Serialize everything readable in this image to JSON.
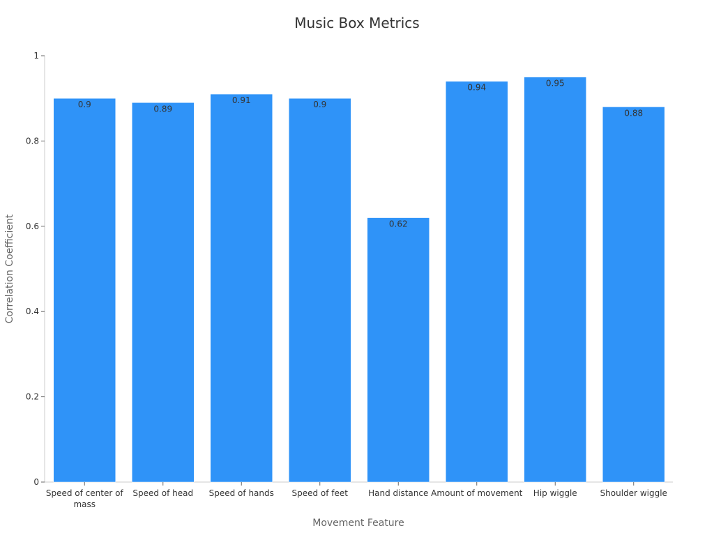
{
  "chart_data": {
    "type": "bar",
    "title": "Music Box Metrics",
    "xlabel": "Movement Feature",
    "ylabel": "Correlation Coefficient",
    "ylim": [
      0,
      1
    ],
    "yticks": [
      0,
      0.2,
      0.4,
      0.6,
      0.8,
      1
    ],
    "ytick_labels": [
      "0",
      "0.2",
      "0.4",
      "0.6",
      "0.8",
      "1"
    ],
    "categories": [
      "Speed of center of mass",
      "Speed of head",
      "Speed of hands",
      "Speed of feet",
      "Hand distance",
      "Amount of movement",
      "Hip wiggle",
      "Shoulder wiggle"
    ],
    "category_label_lines": [
      [
        "Speed of center of",
        "mass"
      ],
      [
        "Speed of head"
      ],
      [
        "Speed of hands"
      ],
      [
        "Speed of feet"
      ],
      [
        "Hand distance"
      ],
      [
        "Amount of movement"
      ],
      [
        "Hip wiggle"
      ],
      [
        "Shoulder wiggle"
      ]
    ],
    "values": [
      0.9,
      0.89,
      0.91,
      0.9,
      0.62,
      0.94,
      0.95,
      0.88
    ],
    "value_labels": [
      "0.9",
      "0.89",
      "0.91",
      "0.9",
      "0.62",
      "0.94",
      "0.95",
      "0.88"
    ],
    "bar_color": "#2f93f8",
    "grid": false,
    "legend": "none"
  }
}
